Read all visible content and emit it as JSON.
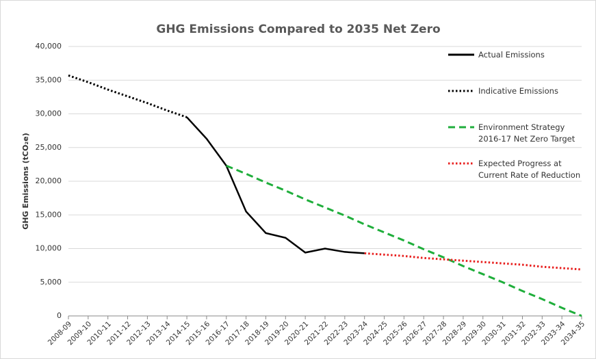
{
  "chart_data": {
    "type": "line",
    "title": "GHG Emissions Compared to 2035 Net Zero",
    "y_label": "GHG Emissions (tCO₂e)",
    "categories": [
      "2008-09",
      "2009-10",
      "2010-11",
      "2011-12",
      "2012-13",
      "2013-14",
      "2014-15",
      "2015-16",
      "2016-17",
      "2017-18",
      "2018-19",
      "2019-20",
      "2020-21",
      "2021-22",
      "2022-23",
      "2023-24",
      "2024-25",
      "2025-26",
      "2026-27",
      "2027-28",
      "2028-29",
      "2029-30",
      "2030-31",
      "2031-32",
      "2032-33",
      "2033-34",
      "2034-35"
    ],
    "series": [
      {
        "name": "Actual Emissions",
        "color": "#000000",
        "style": "solid",
        "values": [
          null,
          null,
          null,
          null,
          null,
          null,
          29500,
          26300,
          22300,
          15500,
          12300,
          11600,
          9400,
          10000,
          9500,
          9300,
          null,
          null,
          null,
          null,
          null,
          null,
          null,
          null,
          null,
          null,
          null
        ]
      },
      {
        "name": "Indicative Emissions",
        "color": "#000000",
        "style": "dotted",
        "values": [
          35700,
          34700,
          33600,
          32600,
          31600,
          30500,
          29500,
          null,
          null,
          null,
          null,
          null,
          null,
          null,
          null,
          null,
          null,
          null,
          null,
          null,
          null,
          null,
          null,
          null,
          null,
          null,
          null
        ]
      },
      {
        "name": "Environment Strategy 2016-17 Net Zero Target",
        "color": "#1fae3b",
        "style": "dashed",
        "values": [
          null,
          null,
          null,
          null,
          null,
          null,
          null,
          null,
          22300,
          21100,
          19800,
          18600,
          17300,
          16100,
          14900,
          13600,
          12400,
          11200,
          9900,
          8700,
          7400,
          6200,
          5000,
          3700,
          2500,
          1200,
          0
        ]
      },
      {
        "name": "Expected Progress at Current Rate of Reduction",
        "color": "#e8201f",
        "style": "dotted",
        "values": [
          null,
          null,
          null,
          null,
          null,
          null,
          null,
          null,
          null,
          null,
          null,
          null,
          null,
          null,
          null,
          9300,
          9100,
          8900,
          8600,
          8400,
          8200,
          8000,
          7800,
          7600,
          7300,
          7100,
          6900
        ]
      }
    ],
    "ylim": [
      0,
      40000
    ],
    "yticks": [
      0,
      {
        "value": 5000,
        "label": "5,000"
      },
      {
        "value": 10000,
        "label": "10,000"
      },
      {
        "value": 15000,
        "label": "15,000"
      },
      {
        "value": 20000,
        "label": "20,000"
      },
      {
        "value": 25000,
        "label": "25,000"
      },
      {
        "value": 30000,
        "label": "30,000"
      },
      {
        "value": 35000,
        "label": "35,000"
      },
      {
        "value": 40000,
        "label": "40,000"
      }
    ],
    "grid": true,
    "legend": "right"
  }
}
